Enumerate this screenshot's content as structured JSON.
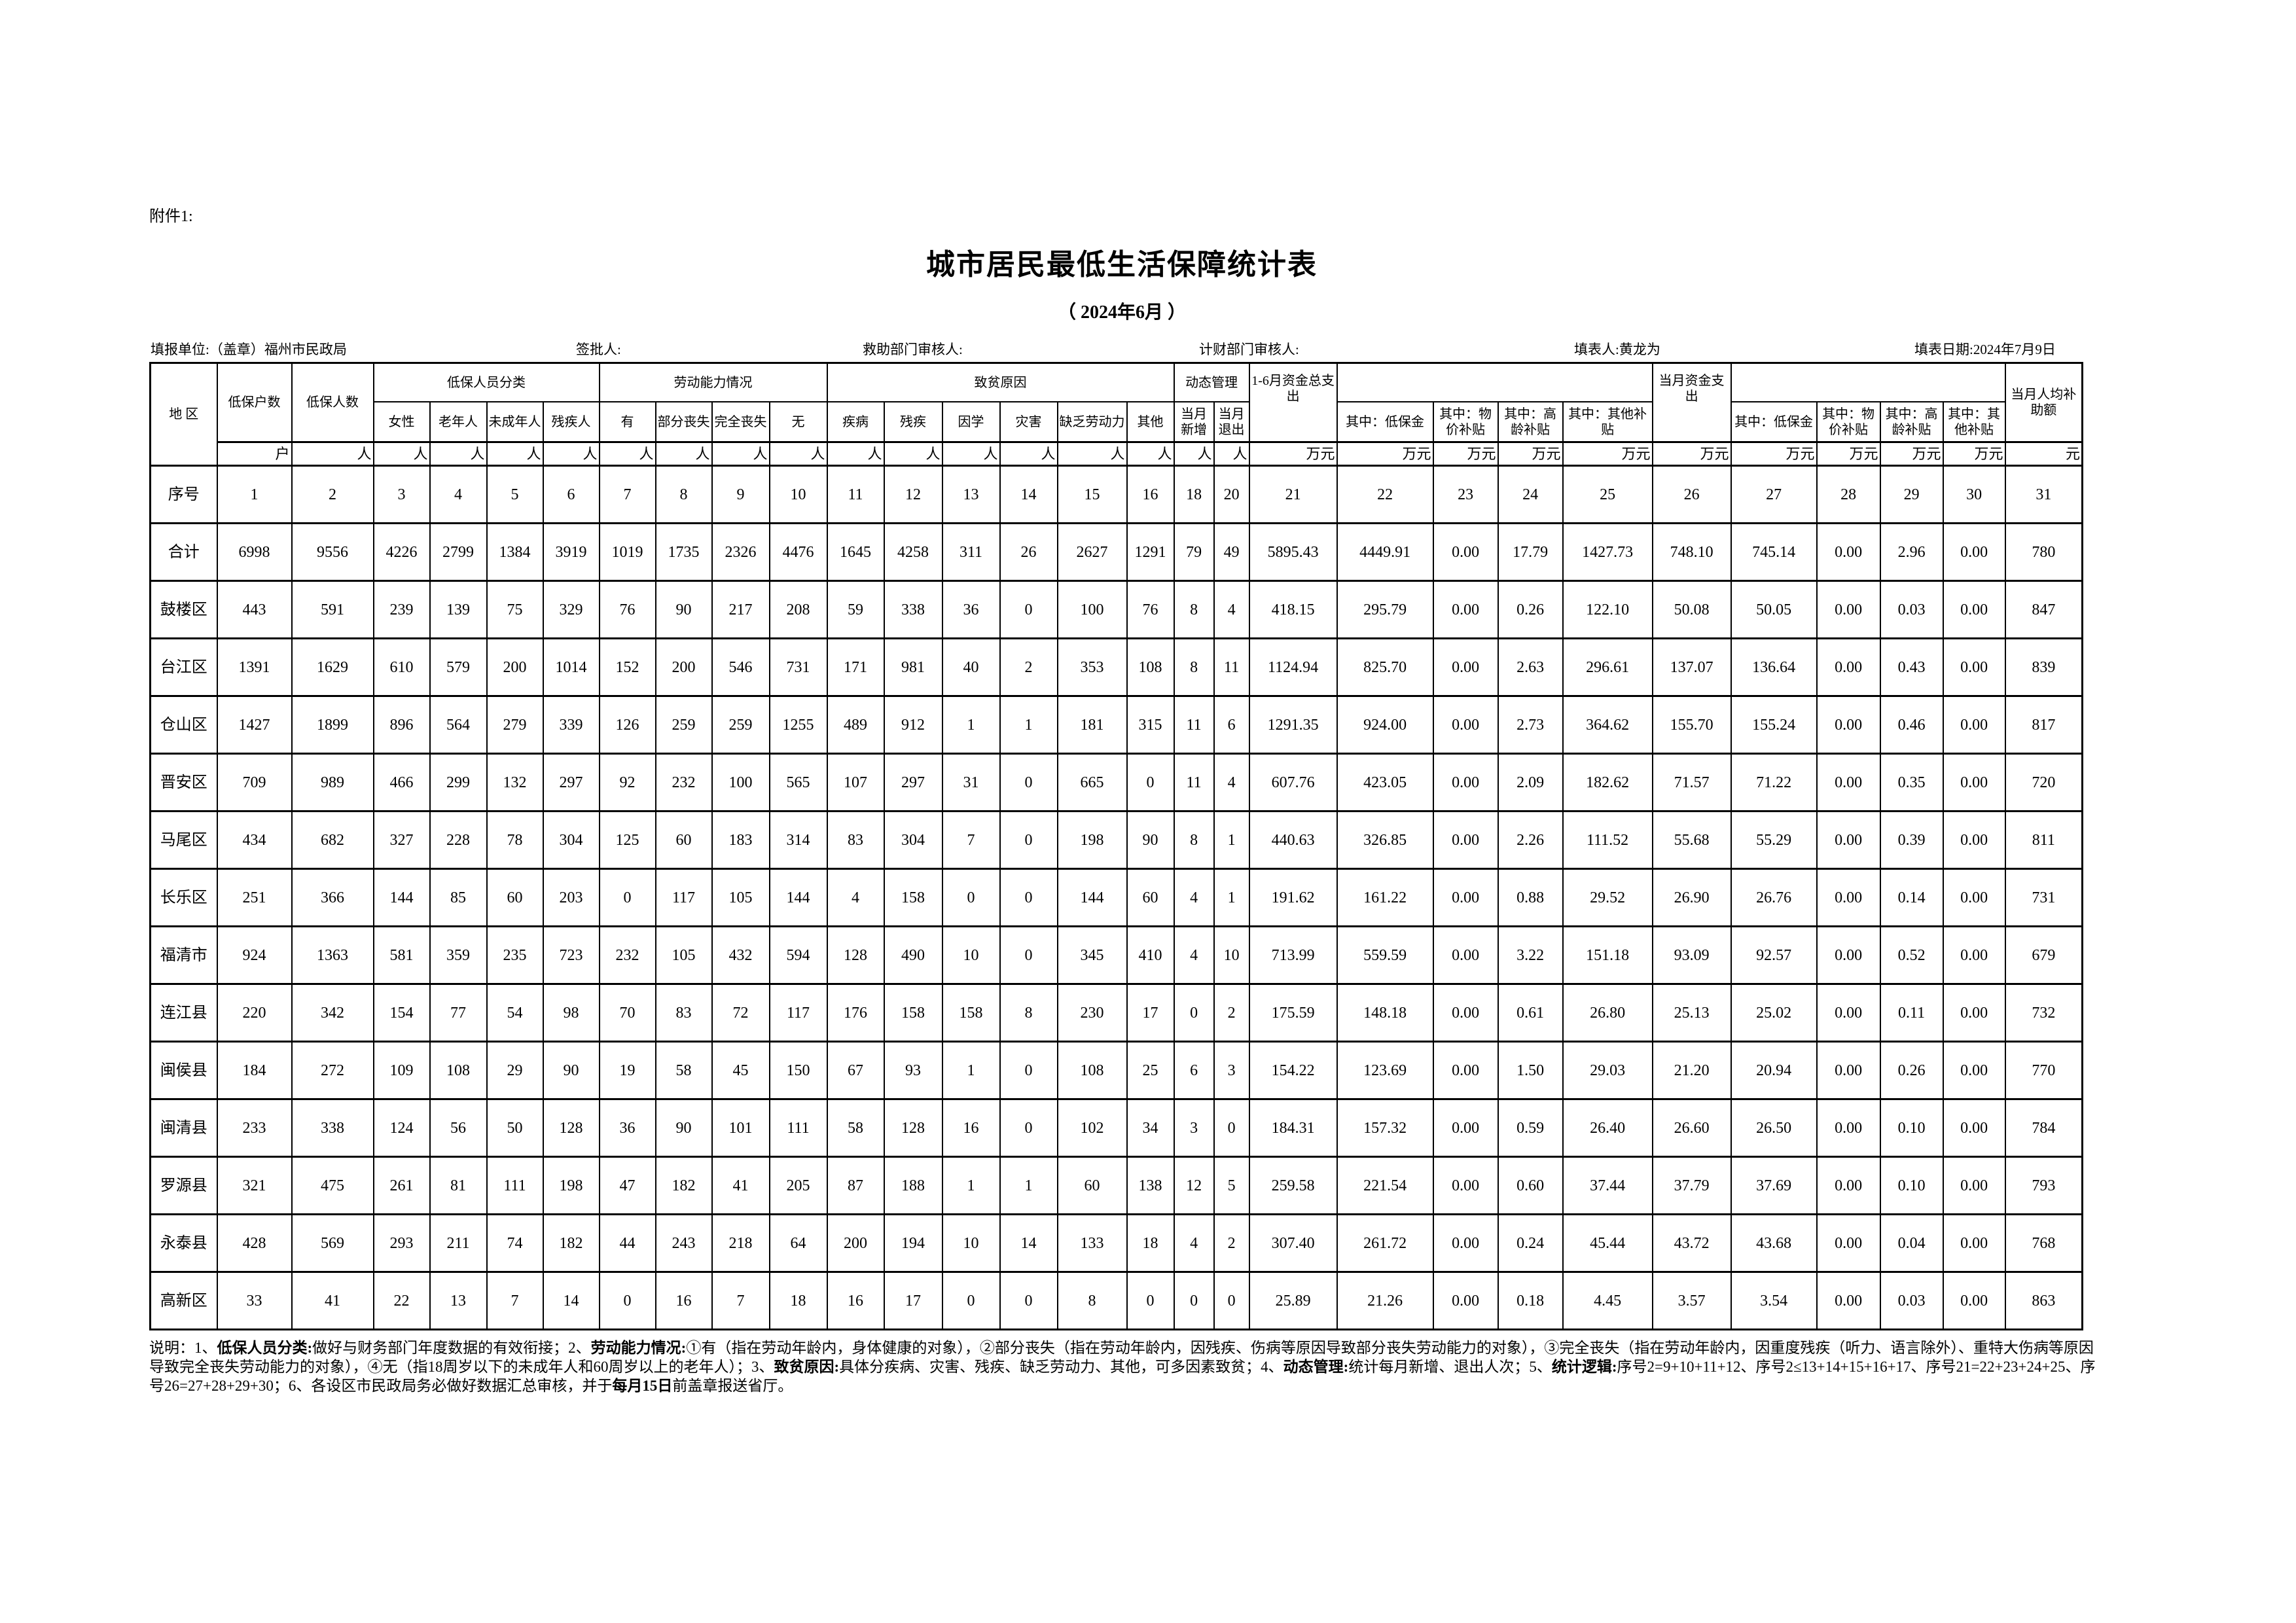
{
  "attachment": "附件1:",
  "title": "城市居民最低生活保障统计表",
  "subtitle": "（ 2024年6月 ）",
  "info": {
    "unit": "填报单位:（盖章）福州市民政局",
    "approver": "签批人:",
    "relief_reviewer": "救助部门审核人:",
    "finance_reviewer": "计财部门审核人:",
    "filler": "填表人:黄龙为",
    "date": "填表日期:2024年7月9日"
  },
  "header": {
    "region": "地 区",
    "households": "低保户数",
    "persons": "低保人数",
    "group_category": "低保人员分类",
    "group_labor": "劳动能力情况",
    "group_poverty": "致贫原因",
    "group_dynamic": "动态管理",
    "total_1_6": "1-6月资金总支出",
    "month_total": "当月资金支出",
    "per_capita": "当月人均补助额",
    "sub": [
      "女性",
      "老年人",
      "未成年人",
      "残疾人",
      "有",
      "部分丧失",
      "完全丧失",
      "无",
      "疾病",
      "残疾",
      "因学",
      "灾害",
      "缺乏劳动力",
      "其他",
      "当月新增",
      "当月退出",
      "其中：低保金",
      "其中：物价补贴",
      "其中：高龄补贴",
      "其中：其他补贴",
      "其中：低保金",
      "其中：物价补贴",
      "其中：高龄补贴",
      "其中：其他补贴"
    ],
    "units": [
      "户",
      "人",
      "人",
      "人",
      "人",
      "人",
      "人",
      "人",
      "人",
      "人",
      "人",
      "人",
      "人",
      "人",
      "人",
      "人",
      "人",
      "人",
      "万元",
      "万元",
      "万元",
      "万元",
      "万元",
      "万元",
      "万元",
      "万元",
      "万元",
      "万元",
      "元"
    ],
    "seq_label": "序号",
    "seq": [
      "1",
      "2",
      "3",
      "4",
      "5",
      "6",
      "7",
      "8",
      "9",
      "10",
      "11",
      "12",
      "13",
      "14",
      "15",
      "16",
      "18",
      "20",
      "21",
      "22",
      "23",
      "24",
      "25",
      "26",
      "27",
      "28",
      "29",
      "30",
      "31"
    ]
  },
  "rows": [
    {
      "name": "合计",
      "values": [
        "6998",
        "9556",
        "4226",
        "2799",
        "1384",
        "3919",
        "1019",
        "1735",
        "2326",
        "4476",
        "1645",
        "4258",
        "311",
        "26",
        "2627",
        "1291",
        "79",
        "49",
        "5895.43",
        "4449.91",
        "0.00",
        "17.79",
        "1427.73",
        "748.10",
        "745.14",
        "0.00",
        "2.96",
        "0.00",
        "780"
      ]
    },
    {
      "name": "鼓楼区",
      "values": [
        "443",
        "591",
        "239",
        "139",
        "75",
        "329",
        "76",
        "90",
        "217",
        "208",
        "59",
        "338",
        "36",
        "0",
        "100",
        "76",
        "8",
        "4",
        "418.15",
        "295.79",
        "0.00",
        "0.26",
        "122.10",
        "50.08",
        "50.05",
        "0.00",
        "0.03",
        "0.00",
        "847"
      ]
    },
    {
      "name": "台江区",
      "values": [
        "1391",
        "1629",
        "610",
        "579",
        "200",
        "1014",
        "152",
        "200",
        "546",
        "731",
        "171",
        "981",
        "40",
        "2",
        "353",
        "108",
        "8",
        "11",
        "1124.94",
        "825.70",
        "0.00",
        "2.63",
        "296.61",
        "137.07",
        "136.64",
        "0.00",
        "0.43",
        "0.00",
        "839"
      ]
    },
    {
      "name": "仓山区",
      "values": [
        "1427",
        "1899",
        "896",
        "564",
        "279",
        "339",
        "126",
        "259",
        "259",
        "1255",
        "489",
        "912",
        "1",
        "1",
        "181",
        "315",
        "11",
        "6",
        "1291.35",
        "924.00",
        "0.00",
        "2.73",
        "364.62",
        "155.70",
        "155.24",
        "0.00",
        "0.46",
        "0.00",
        "817"
      ]
    },
    {
      "name": "晋安区",
      "values": [
        "709",
        "989",
        "466",
        "299",
        "132",
        "297",
        "92",
        "232",
        "100",
        "565",
        "107",
        "297",
        "31",
        "0",
        "665",
        "0",
        "11",
        "4",
        "607.76",
        "423.05",
        "0.00",
        "2.09",
        "182.62",
        "71.57",
        "71.22",
        "0.00",
        "0.35",
        "0.00",
        "720"
      ]
    },
    {
      "name": "马尾区",
      "values": [
        "434",
        "682",
        "327",
        "228",
        "78",
        "304",
        "125",
        "60",
        "183",
        "314",
        "83",
        "304",
        "7",
        "0",
        "198",
        "90",
        "8",
        "1",
        "440.63",
        "326.85",
        "0.00",
        "2.26",
        "111.52",
        "55.68",
        "55.29",
        "0.00",
        "0.39",
        "0.00",
        "811"
      ]
    },
    {
      "name": "长乐区",
      "values": [
        "251",
        "366",
        "144",
        "85",
        "60",
        "203",
        "0",
        "117",
        "105",
        "144",
        "4",
        "158",
        "0",
        "0",
        "144",
        "60",
        "4",
        "1",
        "191.62",
        "161.22",
        "0.00",
        "0.88",
        "29.52",
        "26.90",
        "26.76",
        "0.00",
        "0.14",
        "0.00",
        "731"
      ]
    },
    {
      "name": "福清市",
      "values": [
        "924",
        "1363",
        "581",
        "359",
        "235",
        "723",
        "232",
        "105",
        "432",
        "594",
        "128",
        "490",
        "10",
        "0",
        "345",
        "410",
        "4",
        "10",
        "713.99",
        "559.59",
        "0.00",
        "3.22",
        "151.18",
        "93.09",
        "92.57",
        "0.00",
        "0.52",
        "0.00",
        "679"
      ]
    },
    {
      "name": "连江县",
      "values": [
        "220",
        "342",
        "154",
        "77",
        "54",
        "98",
        "70",
        "83",
        "72",
        "117",
        "176",
        "158",
        "158",
        "8",
        "230",
        "17",
        "0",
        "2",
        "175.59",
        "148.18",
        "0.00",
        "0.61",
        "26.80",
        "25.13",
        "25.02",
        "0.00",
        "0.11",
        "0.00",
        "732"
      ]
    },
    {
      "name": "闽侯县",
      "values": [
        "184",
        "272",
        "109",
        "108",
        "29",
        "90",
        "19",
        "58",
        "45",
        "150",
        "67",
        "93",
        "1",
        "0",
        "108",
        "25",
        "6",
        "3",
        "154.22",
        "123.69",
        "0.00",
        "1.50",
        "29.03",
        "21.20",
        "20.94",
        "0.00",
        "0.26",
        "0.00",
        "770"
      ]
    },
    {
      "name": "闽清县",
      "values": [
        "233",
        "338",
        "124",
        "56",
        "50",
        "128",
        "36",
        "90",
        "101",
        "111",
        "58",
        "128",
        "16",
        "0",
        "102",
        "34",
        "3",
        "0",
        "184.31",
        "157.32",
        "0.00",
        "0.59",
        "26.40",
        "26.60",
        "26.50",
        "0.00",
        "0.10",
        "0.00",
        "784"
      ]
    },
    {
      "name": "罗源县",
      "values": [
        "321",
        "475",
        "261",
        "81",
        "111",
        "198",
        "47",
        "182",
        "41",
        "205",
        "87",
        "188",
        "1",
        "1",
        "60",
        "138",
        "12",
        "5",
        "259.58",
        "221.54",
        "0.00",
        "0.60",
        "37.44",
        "37.79",
        "37.69",
        "0.00",
        "0.10",
        "0.00",
        "793"
      ]
    },
    {
      "name": "永泰县",
      "values": [
        "428",
        "569",
        "293",
        "211",
        "74",
        "182",
        "44",
        "243",
        "218",
        "64",
        "200",
        "194",
        "10",
        "14",
        "133",
        "18",
        "4",
        "2",
        "307.40",
        "261.72",
        "0.00",
        "0.24",
        "45.44",
        "43.72",
        "43.68",
        "0.00",
        "0.04",
        "0.00",
        "768"
      ]
    },
    {
      "name": "高新区",
      "values": [
        "33",
        "41",
        "22",
        "13",
        "7",
        "14",
        "0",
        "16",
        "7",
        "18",
        "16",
        "17",
        "0",
        "0",
        "8",
        "0",
        "0",
        "0",
        "25.89",
        "21.26",
        "0.00",
        "0.18",
        "4.45",
        "3.57",
        "3.54",
        "0.00",
        "0.03",
        "0.00",
        "863"
      ]
    }
  ],
  "note": [
    {
      "text": "说明：1、",
      "bold": false
    },
    {
      "text": "低保人员分类:",
      "bold": true
    },
    {
      "text": "做好与财务部门年度数据的有效衔接；2、",
      "bold": false
    },
    {
      "text": "劳动能力情况:",
      "bold": true
    },
    {
      "text": "①有（指在劳动年龄内，身体健康的对象），②部分丧失（指在劳动年龄内，因残疾、伤病等原因导致部分丧失劳动能力的对象），③完全丧失（指在劳动年龄内，因重度残疾（听力、语言除外）、重特大伤病等原因导致完全丧失劳动能力的对象），④无（指18周岁以下的未成年人和60周岁以上的老年人）；3、",
      "bold": false
    },
    {
      "text": "致贫原因:",
      "bold": true
    },
    {
      "text": "具体分疾病、灾害、残疾、缺乏劳动力、其他，可多因素致贫；4、",
      "bold": false
    },
    {
      "text": "动态管理:",
      "bold": true
    },
    {
      "text": "统计每月新增、退出人次；5、",
      "bold": false
    },
    {
      "text": "统计逻辑:",
      "bold": true
    },
    {
      "text": "序号2=9+10+11+12、序号2≤13+14+15+16+17、序号21=22+23+24+25、序号26=27+28+29+30；6、各设区市民政局务必做好数据汇总审核，并于",
      "bold": false
    },
    {
      "text": "每月15日",
      "bold": true
    },
    {
      "text": "前盖章报送省厅。",
      "bold": false
    }
  ]
}
